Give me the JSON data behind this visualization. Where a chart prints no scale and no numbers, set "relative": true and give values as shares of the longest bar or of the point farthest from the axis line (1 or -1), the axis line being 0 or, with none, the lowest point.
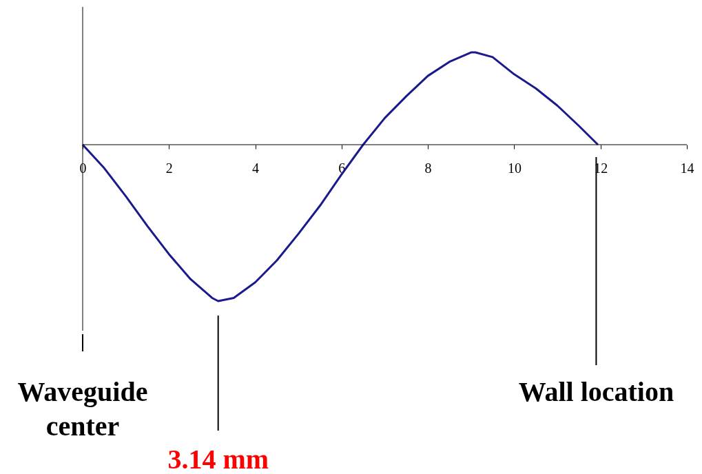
{
  "chart_data": {
    "type": "line",
    "relative": true,
    "x": [
      0,
      0.5,
      1,
      1.5,
      2,
      2.5,
      3,
      3.14,
      3.5,
      4,
      4.5,
      5,
      5.5,
      6,
      6.5,
      7,
      7.5,
      8,
      8.5,
      9,
      9.1,
      9.5,
      10,
      10.5,
      11,
      11.5,
      11.94
    ],
    "series": [
      {
        "color": "#1a1a8c",
        "values": [
          0,
          -0.15,
          -0.33,
          -0.52,
          -0.7,
          -0.86,
          -0.98,
          -1,
          -0.98,
          -0.88,
          -0.74,
          -0.57,
          -0.39,
          -0.19,
          0,
          0.17,
          0.31,
          0.44,
          0.53,
          0.59,
          0.59,
          0.56,
          0.45,
          0.36,
          0.25,
          0.12,
          0
        ]
      }
    ],
    "xlim": [
      0,
      14
    ],
    "xticks": [
      0,
      2,
      4,
      6,
      8,
      10,
      12,
      14
    ],
    "grid": false,
    "marker": "none",
    "line_style": "solid",
    "annotations": [
      {
        "text": "Waveguide center",
        "x": 0
      },
      {
        "text": "3.14 mm",
        "x": 3.14
      },
      {
        "text": "Wall location",
        "x": 11.9
      }
    ]
  }
}
